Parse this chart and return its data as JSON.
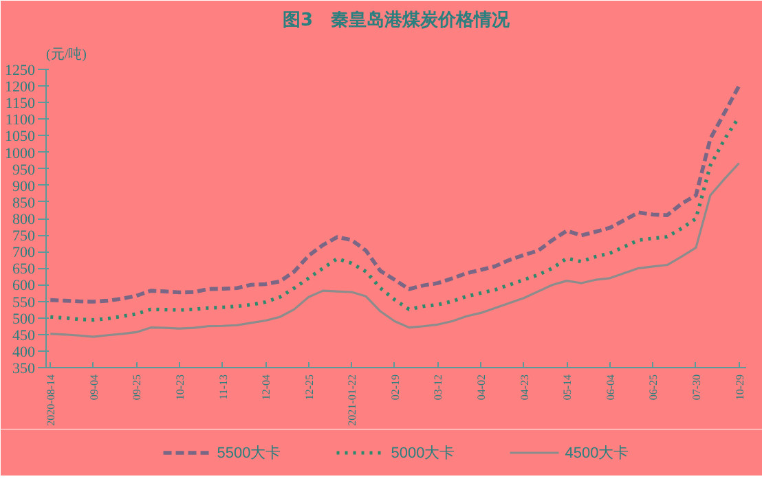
{
  "chart_data": {
    "type": "line",
    "title": "图3　秦皇岛港煤炭价格情况",
    "ylabel": "(元/吨)",
    "categories": [
      "2020-08-14",
      null,
      null,
      "09-04",
      null,
      null,
      "09-25",
      null,
      null,
      "10-23",
      null,
      null,
      "11-13",
      null,
      null,
      "12-04",
      null,
      null,
      "12-25",
      null,
      null,
      "2021-01-22",
      null,
      null,
      "02-19",
      null,
      null,
      "03-12",
      null,
      null,
      "04-02",
      null,
      null,
      "04-23",
      null,
      null,
      "05-14",
      null,
      null,
      "06-04",
      null,
      null,
      "06-25",
      null,
      null,
      "07-30",
      null,
      null,
      "10-29"
    ],
    "series": [
      {
        "name": "5500大卡",
        "color": "#7a6685",
        "line_style": "dashed",
        "values": [
          554,
          552,
          550,
          549,
          552,
          558,
          567,
          582,
          580,
          577,
          578,
          587,
          588,
          590,
          600,
          602,
          610,
          640,
          688,
          720,
          744,
          735,
          703,
          642,
          615,
          587,
          598,
          605,
          619,
          635,
          645,
          656,
          675,
          690,
          703,
          735,
          763,
          749,
          760,
          772,
          795,
          818,
          812,
          810,
          845,
          870,
          1041,
          1120,
          1200
        ]
      },
      {
        "name": "5000大卡",
        "color": "#2e8a6e",
        "line_style": "dotted",
        "values": [
          503,
          500,
          496,
          494,
          498,
          505,
          512,
          526,
          525,
          524,
          526,
          530,
          532,
          535,
          540,
          548,
          563,
          590,
          620,
          650,
          679,
          665,
          640,
          590,
          555,
          526,
          535,
          540,
          550,
          565,
          575,
          585,
          600,
          615,
          630,
          650,
          680,
          670,
          685,
          695,
          715,
          735,
          740,
          745,
          770,
          800,
          960,
          1040,
          1106
        ]
      },
      {
        "name": "4500大卡",
        "color": "#8c8c8c",
        "line_style": "solid",
        "values": [
          452,
          450,
          447,
          443,
          448,
          452,
          457,
          471,
          470,
          468,
          470,
          475,
          476,
          478,
          485,
          492,
          503,
          526,
          563,
          582,
          580,
          578,
          565,
          520,
          490,
          471,
          475,
          480,
          490,
          505,
          515,
          530,
          545,
          560,
          580,
          600,
          612,
          605,
          615,
          620,
          635,
          650,
          655,
          660,
          685,
          712,
          870,
          920,
          967
        ]
      }
    ],
    "ylim": [
      350,
      1250
    ],
    "yticks": [
      350,
      400,
      450,
      500,
      550,
      600,
      650,
      700,
      750,
      800,
      850,
      900,
      950,
      1000,
      1050,
      1100,
      1150,
      1200,
      1250
    ],
    "grid": false,
    "legend": "bottom",
    "marker": "none"
  }
}
